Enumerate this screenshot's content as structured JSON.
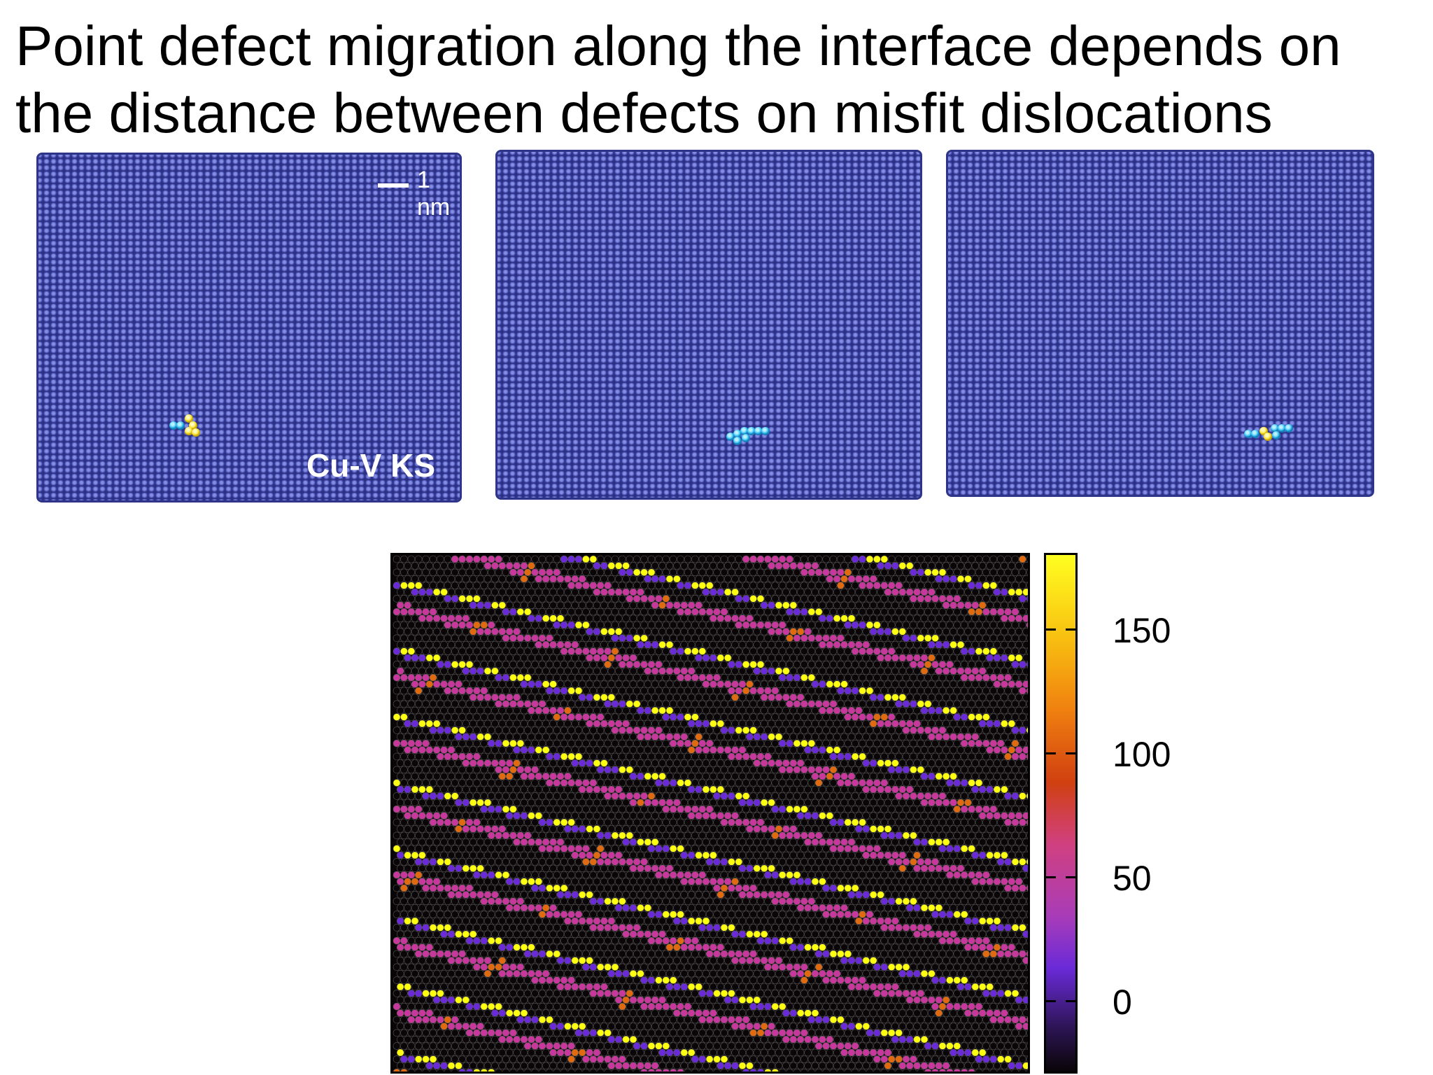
{
  "title": "Point defect migration along the interface depends on the distance between defects on misfit dislocations",
  "panels": [
    {
      "scale_bar": "1 nm",
      "label": "Cu-V KS"
    },
    {},
    {}
  ],
  "colors": {
    "lattice": "#4a52b5",
    "defect_interstitial": "#2ab8ee",
    "defect_vacancy": "#f8e22a"
  },
  "heatmap": {
    "colorbar_ticks": [
      "150",
      "100",
      "50",
      "0"
    ],
    "colorbar_min": -30,
    "colorbar_max": 180,
    "palette": [
      "#0a0608",
      "#6a2ad8",
      "#c8389c",
      "#ffff10",
      "#e06a10"
    ]
  }
}
